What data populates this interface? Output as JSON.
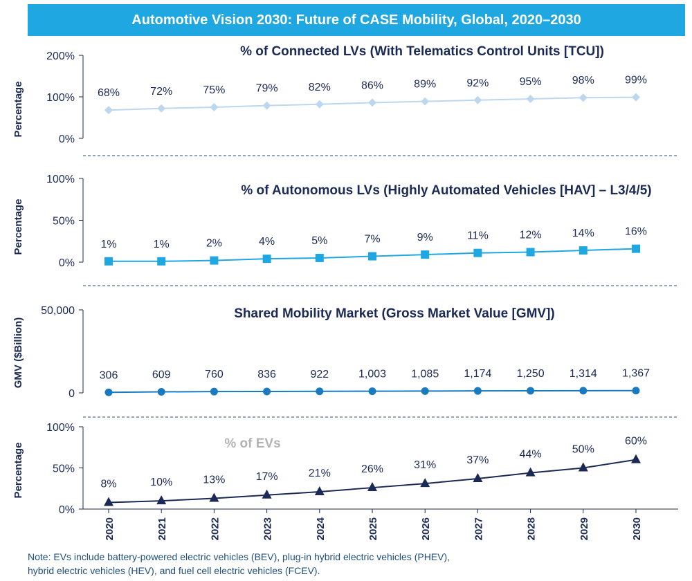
{
  "banner": {
    "title": "Automotive Vision 2030: Future of CASE Mobility, Global, 2020–2030"
  },
  "note": {
    "line1": "Note: EVs include battery-powered electric vehicles (BEV), plug-in hybrid electric vehicles (PHEV),",
    "line2": "hybrid electric vehicles (HEV), and fuel cell electric vehicles (FCEV)."
  },
  "colors": {
    "banner": "#1ea7e1",
    "connected": "#bcd7ee",
    "autonomous": "#1ea7e1",
    "shared": "#1a7ac0",
    "ev": "#1b2a55",
    "title_dark": "#1b2a55",
    "title_muted": "#b3b3b3",
    "separator": "#1f4e79"
  },
  "chart_data": [
    {
      "type": "line",
      "title": "% of Connected LVs (With Telematics Control Units [TCU])",
      "ylabel": "Percentage",
      "ylim": [
        0,
        200
      ],
      "yticks": [
        "0%",
        "100%",
        "200%"
      ],
      "x": [
        "2020",
        "2021",
        "2022",
        "2023",
        "2024",
        "2025",
        "2026",
        "2027",
        "2028",
        "2029",
        "2030"
      ],
      "values": [
        68,
        72,
        75,
        79,
        82,
        86,
        89,
        92,
        95,
        98,
        99
      ],
      "labels": [
        "68%",
        "72%",
        "75%",
        "79%",
        "82%",
        "86%",
        "89%",
        "92%",
        "95%",
        "98%",
        "99%"
      ],
      "marker": "diamond",
      "grid": false
    },
    {
      "type": "line",
      "title": "% of Autonomous LVs (Highly Automated Vehicles [HAV] – L3/4/5)",
      "ylabel": "Percentage",
      "ylim": [
        0,
        100
      ],
      "yticks": [
        "0%",
        "50%",
        "100%"
      ],
      "x": [
        "2020",
        "2021",
        "2022",
        "2023",
        "2024",
        "2025",
        "2026",
        "2027",
        "2028",
        "2029",
        "2030"
      ],
      "values": [
        1,
        1,
        2,
        4,
        5,
        7,
        9,
        11,
        12,
        14,
        16
      ],
      "labels": [
        "1%",
        "1%",
        "2%",
        "4%",
        "5%",
        "7%",
        "9%",
        "11%",
        "12%",
        "14%",
        "16%"
      ],
      "marker": "square",
      "grid": false
    },
    {
      "type": "line",
      "title": "Shared Mobility Market (Gross Market Value [GMV])",
      "ylabel": "GMV ($Billion)",
      "ylim": [
        0,
        50000
      ],
      "yticks": [
        "0",
        "50,000"
      ],
      "x": [
        "2020",
        "2021",
        "2022",
        "2023",
        "2024",
        "2025",
        "2026",
        "2027",
        "2028",
        "2029",
        "2030"
      ],
      "values": [
        306,
        609,
        760,
        836,
        922,
        1003,
        1085,
        1174,
        1250,
        1314,
        1367
      ],
      "labels": [
        "306",
        "609",
        "760",
        "836",
        "922",
        "1,003",
        "1,085",
        "1,174",
        "1,250",
        "1,314",
        "1,367"
      ],
      "marker": "circle",
      "grid": false
    },
    {
      "type": "line",
      "title": "% of EVs",
      "ylabel": "Percentage",
      "ylim": [
        0,
        100
      ],
      "yticks": [
        "0%",
        "50%",
        "100%"
      ],
      "x": [
        "2020",
        "2021",
        "2022",
        "2023",
        "2024",
        "2025",
        "2026",
        "2027",
        "2028",
        "2029",
        "2030"
      ],
      "values": [
        8,
        10,
        13,
        17,
        21,
        26,
        31,
        37,
        44,
        50,
        60
      ],
      "labels": [
        "8%",
        "10%",
        "13%",
        "17%",
        "21%",
        "26%",
        "31%",
        "37%",
        "44%",
        "50%",
        "60%"
      ],
      "marker": "triangle",
      "grid": false
    }
  ]
}
